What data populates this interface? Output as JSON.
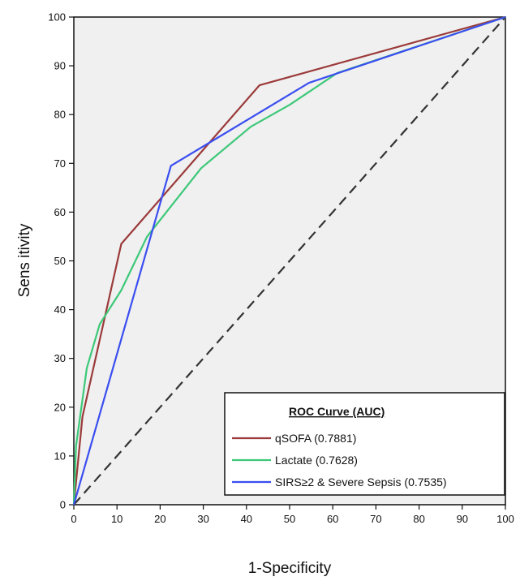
{
  "chart_data": {
    "type": "line",
    "xlabel": "1-Specificity",
    "ylabel": "Sens itivity",
    "xlim": [
      0,
      100
    ],
    "ylim": [
      0,
      100
    ],
    "x_ticks": [
      0,
      10,
      20,
      30,
      40,
      50,
      60,
      70,
      80,
      90,
      100
    ],
    "y_ticks": [
      0,
      10,
      20,
      30,
      40,
      50,
      60,
      70,
      80,
      90,
      100
    ],
    "grid": false,
    "background": "#f0f0f0",
    "legend": {
      "title": "ROC Curve (AUC)",
      "placement": "bottom-right"
    },
    "reference_line": {
      "points": [
        [
          0,
          0
        ],
        [
          100,
          100
        ]
      ],
      "color": "#333333",
      "style": "dashed"
    },
    "series": [
      {
        "name": "qSOFA",
        "legend_label": "qSOFA (0.7881)",
        "auc": 0.7881,
        "color": "#9b3a3a",
        "points": [
          [
            0,
            0
          ],
          [
            2,
            18
          ],
          [
            11,
            53.5
          ],
          [
            43,
            86
          ],
          [
            100,
            100
          ]
        ]
      },
      {
        "name": "Lactate",
        "legend_label": "Lactate (0.7628)",
        "auc": 0.7628,
        "color": "#3cc878",
        "points": [
          [
            0,
            0
          ],
          [
            0.5,
            12
          ],
          [
            3,
            28
          ],
          [
            6,
            37
          ],
          [
            11,
            44
          ],
          [
            17,
            55
          ],
          [
            21,
            59.5
          ],
          [
            29.5,
            69
          ],
          [
            41,
            77.5
          ],
          [
            50,
            82
          ],
          [
            61,
            88.5
          ],
          [
            100,
            100
          ]
        ]
      },
      {
        "name": "SIRS≥2 & Severe Sepsis",
        "legend_label": "SIRS≥2 & Severe Sepsis (0.7535)",
        "auc": 0.7535,
        "color": "#3a4ef0",
        "points": [
          [
            0,
            0
          ],
          [
            22.5,
            69.5
          ],
          [
            54.5,
            86.5
          ],
          [
            100,
            100
          ]
        ]
      }
    ]
  }
}
